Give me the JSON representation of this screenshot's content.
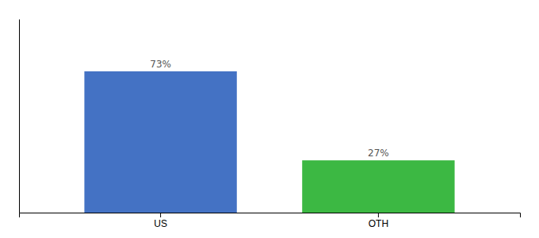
{
  "chart_data": {
    "type": "bar",
    "categories": [
      "US",
      "OTH"
    ],
    "values": [
      73,
      27
    ],
    "value_labels": [
      "73%",
      "27%"
    ],
    "colors": [
      "#4472c4",
      "#3cb843"
    ],
    "ylim": [
      0,
      100
    ],
    "data_labels": true,
    "tick_labels": "x"
  }
}
